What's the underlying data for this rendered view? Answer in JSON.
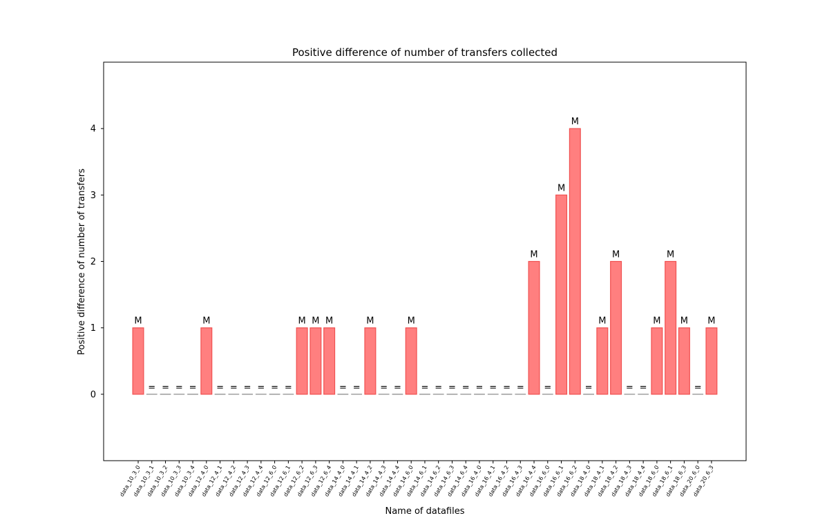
{
  "chart_data": {
    "type": "bar",
    "title": "Positive difference of number of transfers collected",
    "xlabel": "Name of datafiles",
    "ylabel": "Positive difference of number of transfers",
    "ylim": [
      -1,
      5
    ],
    "yticks": [
      0,
      1,
      2,
      3,
      4
    ],
    "grid": false,
    "bar_color": "#ff7f7f",
    "bar_edge_color": "#f05050",
    "zero_line_color": "#808080",
    "categories": [
      "data_10_3_0",
      "data_10_3_1",
      "data_10_3_2",
      "data_10_3_3",
      "data_10_3_4",
      "data_12_4_0",
      "data_12_4_1",
      "data_12_4_2",
      "data_12_4_3",
      "data_12_4_4",
      "data_12_6_0",
      "data_12_6_1",
      "data_12_6_2",
      "data_12_6_3",
      "data_12_6_4",
      "data_14_4_0",
      "data_14_4_1",
      "data_14_4_2",
      "data_14_4_3",
      "data_14_4_4",
      "data_14_6_0",
      "data_14_6_1",
      "data_14_6_2",
      "data_14_6_3",
      "data_14_6_4",
      "data_16_4_0",
      "data_16_4_1",
      "data_16_4_2",
      "data_16_4_3",
      "data_16_4_4",
      "data_16_6_0",
      "data_16_6_1",
      "data_16_6_2",
      "data_18_4_0",
      "data_18_4_1",
      "data_18_4_2",
      "data_18_4_3",
      "data_18_4_4",
      "data_18_6_0",
      "data_18_6_1",
      "data_18_6_3",
      "data_20_6_0",
      "data_20_6_3"
    ],
    "values": [
      1,
      0,
      0,
      0,
      0,
      1,
      0,
      0,
      0,
      0,
      0,
      0,
      1,
      1,
      1,
      0,
      0,
      1,
      0,
      0,
      1,
      0,
      0,
      0,
      0,
      0,
      0,
      0,
      0,
      2,
      0,
      3,
      4,
      0,
      1,
      2,
      0,
      0,
      1,
      2,
      1,
      0,
      1
    ],
    "labels": [
      "M",
      "=",
      "=",
      "=",
      "=",
      "M",
      "=",
      "=",
      "=",
      "=",
      "=",
      "=",
      "M",
      "M",
      "M",
      "=",
      "=",
      "M",
      "=",
      "=",
      "M",
      "=",
      "=",
      "=",
      "=",
      "=",
      "=",
      "=",
      "=",
      "M",
      "=",
      "M",
      "M",
      "=",
      "M",
      "M",
      "=",
      "=",
      "M",
      "M",
      "M",
      "=",
      "M"
    ]
  }
}
